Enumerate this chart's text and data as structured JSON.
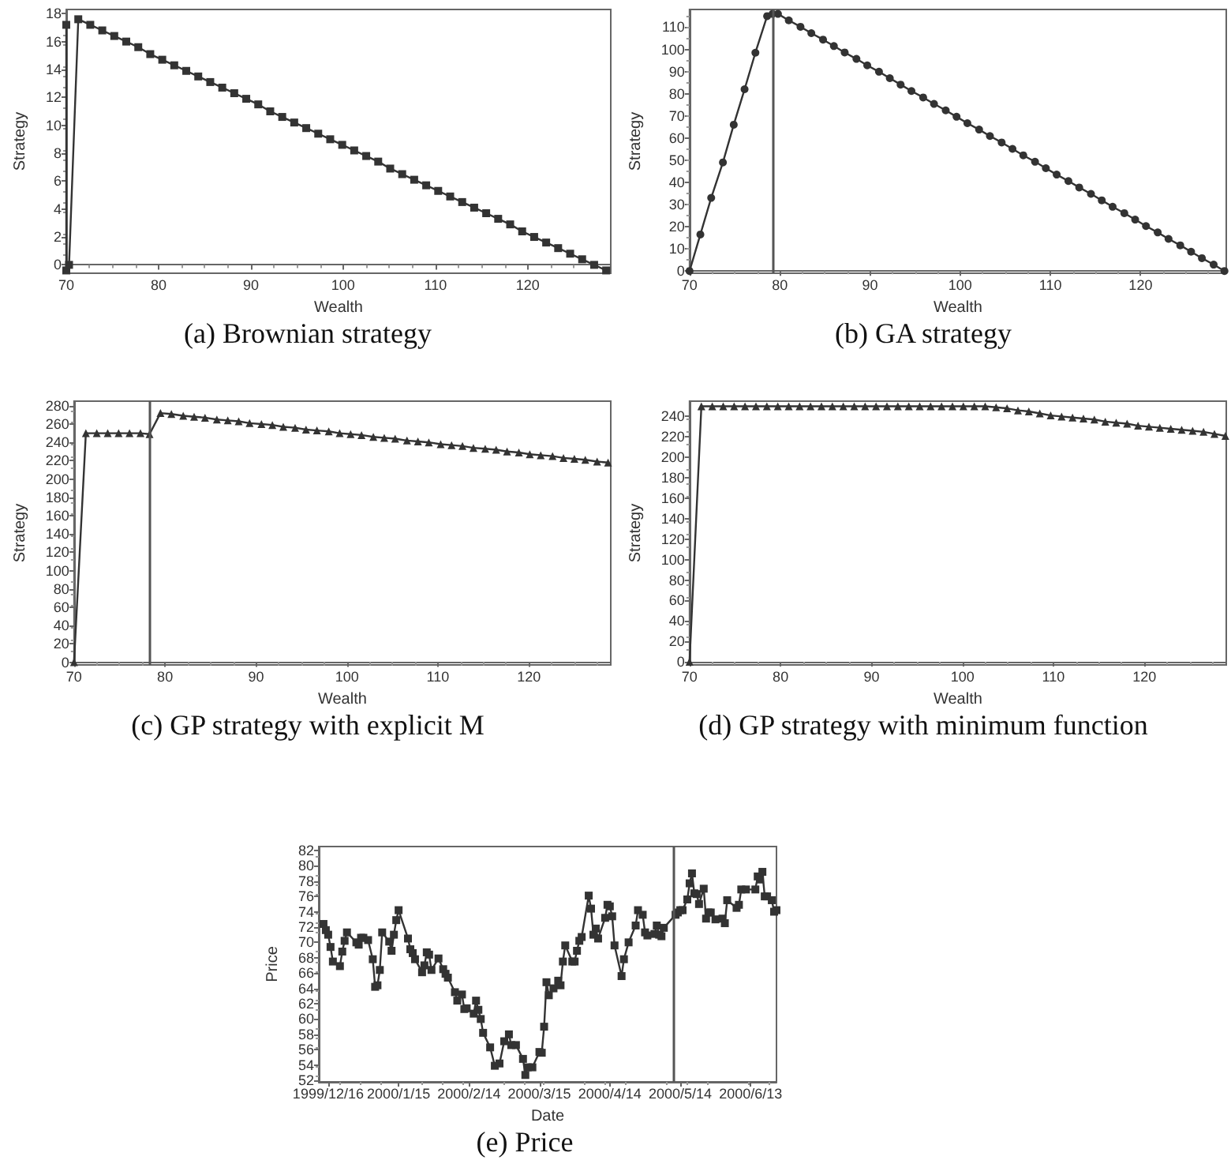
{
  "chart_data": [
    {
      "type": "line",
      "title": "(a) Brownian strategy",
      "xlabel": "Wealth",
      "ylabel": "Strategy",
      "color": "#333333",
      "marker": "square",
      "xlim": [
        70,
        129
      ],
      "ylim": [
        -0.6,
        18.3
      ],
      "xticks": [
        70,
        80,
        90,
        100,
        110,
        120
      ],
      "yticks": [
        0,
        2,
        4,
        6,
        8,
        10,
        12,
        14,
        16,
        18
      ],
      "x": [
        70,
        70,
        70.3,
        71.3,
        72.6,
        73.9,
        75.2,
        76.5,
        77.8,
        79.1,
        80.4,
        81.7,
        83.0,
        84.3,
        85.6,
        86.9,
        88.2,
        89.5,
        90.8,
        92.1,
        93.4,
        94.7,
        96.0,
        97.3,
        98.6,
        99.9,
        101.2,
        102.5,
        103.8,
        105.1,
        106.4,
        107.7,
        109.0,
        110.3,
        111.6,
        112.9,
        114.2,
        115.5,
        116.8,
        118.1,
        119.4,
        120.7,
        122.0,
        123.3,
        124.6,
        125.9,
        127.2,
        128.5
      ],
      "values": [
        17.2,
        -0.4,
        0,
        17.6,
        17.2,
        16.8,
        16.4,
        16.0,
        15.6,
        15.1,
        14.7,
        14.3,
        13.9,
        13.5,
        13.1,
        12.7,
        12.3,
        11.9,
        11.5,
        11.0,
        10.6,
        10.2,
        9.8,
        9.4,
        9.0,
        8.6,
        8.2,
        7.8,
        7.4,
        6.9,
        6.5,
        6.1,
        5.7,
        5.3,
        4.9,
        4.5,
        4.1,
        3.7,
        3.3,
        2.9,
        2.4,
        2.0,
        1.6,
        1.2,
        0.8,
        0.4,
        0.0,
        -0.4
      ]
    },
    {
      "type": "line",
      "title": "(b) GA strategy",
      "xlabel": "Wealth",
      "ylabel": "Strategy",
      "color": "#333333",
      "marker": "circle",
      "xlim": [
        70,
        129.5
      ],
      "ylim": [
        -1,
        118
      ],
      "xticks": [
        70,
        80,
        90,
        100,
        110,
        120
      ],
      "yticks": [
        0,
        10,
        20,
        30,
        40,
        50,
        60,
        70,
        80,
        90,
        100,
        110
      ],
      "ref_lines": [
        {
          "axis": "x",
          "value": 79.2,
          "color": "#555555"
        }
      ],
      "x": [
        70,
        71.2,
        72.4,
        73.7,
        74.9,
        76.1,
        77.3,
        78.6,
        79.2,
        79.8,
        81.0,
        82.3,
        83.5,
        84.8,
        86.0,
        87.2,
        88.5,
        89.7,
        91.0,
        92.2,
        93.4,
        94.6,
        95.9,
        97.1,
        98.4,
        99.6,
        100.8,
        102.1,
        103.3,
        104.6,
        105.8,
        107.0,
        108.3,
        109.5,
        110.7,
        112.0,
        113.2,
        114.5,
        115.7,
        116.9,
        118.2,
        119.4,
        120.6,
        121.9,
        123.1,
        124.4,
        125.6,
        126.8,
        128.1,
        129.3
      ],
      "values": [
        0,
        16.5,
        33,
        49,
        66,
        82,
        98.5,
        115,
        116,
        116,
        113.1,
        110.2,
        107.3,
        104.4,
        101.5,
        98.6,
        95.7,
        92.8,
        89.9,
        87,
        84.1,
        81.2,
        78.3,
        75.4,
        72.5,
        69.6,
        66.7,
        63.8,
        60.9,
        58,
        55.1,
        52.2,
        49.3,
        46.4,
        43.5,
        40.6,
        37.7,
        34.8,
        31.9,
        29,
        26.1,
        23.2,
        20.3,
        17.4,
        14.5,
        11.6,
        8.7,
        5.8,
        2.9,
        0
      ]
    },
    {
      "type": "line",
      "title": "(c) GP strategy with explicit M",
      "xlabel": "Wealth",
      "ylabel": "Strategy",
      "color": "#333333",
      "marker": "triangle",
      "xlim": [
        70,
        129
      ],
      "ylim": [
        -3,
        285
      ],
      "xticks": [
        70,
        80,
        90,
        100,
        110,
        120
      ],
      "yticks": [
        0,
        20,
        40,
        60,
        80,
        100,
        120,
        140,
        160,
        180,
        200,
        220,
        240,
        260,
        280
      ],
      "ref_lines": [
        {
          "axis": "x",
          "value": 78.3,
          "color": "#555555"
        }
      ],
      "x": [
        70,
        71.3,
        72.5,
        73.7,
        74.9,
        76.1,
        77.3,
        78.3,
        79.5,
        80.7,
        82.0,
        83.2,
        84.4,
        85.7,
        86.9,
        88.1,
        89.3,
        90.6,
        91.8,
        93.0,
        94.3,
        95.5,
        96.7,
        98.0,
        99.2,
        100.4,
        101.6,
        102.9,
        104.1,
        105.3,
        106.6,
        107.8,
        109.0,
        110.3,
        111.5,
        112.7,
        113.9,
        115.2,
        116.4,
        117.6,
        118.9,
        120.1,
        121.3,
        122.6,
        123.8,
        125.0,
        126.2,
        127.5,
        128.7
      ],
      "values": [
        0,
        250,
        250,
        250,
        250,
        250,
        250,
        249,
        272,
        271,
        269,
        268,
        267,
        265,
        264,
        263,
        261,
        260,
        259,
        257,
        256,
        254,
        253,
        252,
        250,
        249,
        248,
        246,
        245,
        244,
        242,
        241,
        240,
        238,
        237,
        236,
        234,
        233,
        232,
        230,
        229,
        227,
        226,
        225,
        223,
        222,
        221,
        219,
        218
      ]
    },
    {
      "type": "line",
      "title": "(d) GP strategy with minimum function",
      "xlabel": "Wealth",
      "ylabel": "Strategy",
      "color": "#333333",
      "marker": "triangle",
      "xlim": [
        70,
        129
      ],
      "ylim": [
        -3,
        255
      ],
      "xticks": [
        70,
        80,
        90,
        100,
        110,
        120
      ],
      "yticks": [
        0,
        20,
        40,
        60,
        80,
        100,
        120,
        140,
        160,
        180,
        200,
        220,
        240
      ],
      "x": [
        70,
        71.3,
        72.5,
        73.7,
        74.9,
        76.1,
        77.3,
        78.5,
        79.7,
        80.9,
        82.1,
        83.3,
        84.5,
        85.7,
        86.9,
        88.1,
        89.3,
        90.5,
        91.7,
        92.9,
        94.1,
        95.3,
        96.5,
        97.7,
        98.9,
        100.1,
        101.3,
        102.5,
        103.7,
        104.9,
        106.1,
        107.3,
        108.5,
        109.7,
        110.9,
        112.1,
        113.3,
        114.5,
        115.7,
        116.9,
        118.1,
        119.3,
        120.5,
        121.7,
        122.9,
        124.1,
        125.3,
        126.5,
        127.7,
        128.9
      ],
      "values": [
        0,
        250,
        250,
        250,
        250,
        250,
        250,
        250,
        250,
        250,
        250,
        250,
        250,
        250,
        250,
        250,
        250,
        250,
        250,
        250,
        250,
        250,
        250,
        250,
        250,
        250,
        250,
        250,
        249,
        248,
        246,
        245,
        243,
        241,
        240,
        239,
        238,
        237,
        235,
        234,
        233,
        231,
        230,
        229,
        228,
        227,
        226,
        225,
        223,
        221
      ]
    },
    {
      "type": "line",
      "title": "(e) Price",
      "xlabel": "Date",
      "ylabel": "Price",
      "color": "#333333",
      "marker": "square",
      "xlim": [
        "1999-12-12",
        "2000-06-24"
      ],
      "ylim": [
        51.8,
        82.5
      ],
      "xticks": [
        {
          "value": "1999-12-16",
          "label": "1999/12/16"
        },
        {
          "value": "2000-01-15",
          "label": "2000/1/15"
        },
        {
          "value": "2000-02-14",
          "label": "2000/2/14"
        },
        {
          "value": "2000-03-15",
          "label": "2000/3/15"
        },
        {
          "value": "2000-04-14",
          "label": "2000/4/14"
        },
        {
          "value": "2000-05-14",
          "label": "2000/5/14"
        },
        {
          "value": "2000-06-13",
          "label": "2000/6/13"
        }
      ],
      "yticks": [
        52,
        54,
        56,
        58,
        60,
        62,
        64,
        66,
        68,
        70,
        72,
        74,
        76,
        78,
        80,
        82
      ],
      "ref_lines": [
        {
          "axis": "x",
          "value": "2000-05-11",
          "color": "#555555"
        }
      ],
      "x": [
        "1999-12-14",
        "1999-12-15",
        "1999-12-16",
        "1999-12-17",
        "1999-12-18",
        "1999-12-21",
        "1999-12-22",
        "1999-12-23",
        "1999-12-24",
        "1999-12-28",
        "1999-12-29",
        "1999-12-30",
        "1999-12-31",
        "2000-01-02",
        "2000-01-04",
        "2000-01-05",
        "2000-01-06",
        "2000-01-07",
        "2000-01-08",
        "2000-01-11",
        "2000-01-12",
        "2000-01-13",
        "2000-01-14",
        "2000-01-15",
        "2000-01-19",
        "2000-01-20",
        "2000-01-21",
        "2000-01-22",
        "2000-01-25",
        "2000-01-26",
        "2000-01-27",
        "2000-01-28",
        "2000-01-29",
        "2000-02-01",
        "2000-02-03",
        "2000-02-04",
        "2000-02-05",
        "2000-02-08",
        "2000-02-09",
        "2000-02-11",
        "2000-02-12",
        "2000-02-13",
        "2000-02-16",
        "2000-02-17",
        "2000-02-18",
        "2000-02-19",
        "2000-02-20",
        "2000-02-23",
        "2000-02-25",
        "2000-02-27",
        "2000-02-29",
        "2000-03-02",
        "2000-03-03",
        "2000-03-05",
        "2000-03-08",
        "2000-03-09",
        "2000-03-10",
        "2000-03-12",
        "2000-03-15",
        "2000-03-16",
        "2000-03-17",
        "2000-03-18",
        "2000-03-19",
        "2000-03-21",
        "2000-03-23",
        "2000-03-24",
        "2000-03-25",
        "2000-03-26",
        "2000-03-29",
        "2000-03-30",
        "2000-03-31",
        "2000-04-01",
        "2000-04-02",
        "2000-04-05",
        "2000-04-06",
        "2000-04-07",
        "2000-04-08",
        "2000-04-09",
        "2000-04-12",
        "2000-04-13",
        "2000-04-14",
        "2000-04-15",
        "2000-04-16",
        "2000-04-19",
        "2000-04-20",
        "2000-04-22",
        "2000-04-25",
        "2000-04-26",
        "2000-04-28",
        "2000-04-29",
        "2000-04-30",
        "2000-05-03",
        "2000-05-04",
        "2000-05-05",
        "2000-05-06",
        "2000-05-07",
        "2000-05-12",
        "2000-05-13",
        "2000-05-14",
        "2000-05-15",
        "2000-05-17",
        "2000-05-18",
        "2000-05-19",
        "2000-05-20",
        "2000-05-21",
        "2000-05-22",
        "2000-05-24",
        "2000-05-25",
        "2000-05-26",
        "2000-05-27",
        "2000-05-29",
        "2000-06-01",
        "2000-06-02",
        "2000-06-03",
        "2000-06-07",
        "2000-06-08",
        "2000-06-09",
        "2000-06-11",
        "2000-06-15",
        "2000-06-16",
        "2000-06-17",
        "2000-06-18",
        "2000-06-19",
        "2000-06-20",
        "2000-06-22",
        "2000-06-23",
        "2000-06-24"
      ],
      "values": [
        72.4,
        71.6,
        71.0,
        69.4,
        67.5,
        66.9,
        68.8,
        70.2,
        71.3,
        70.0,
        69.7,
        70.6,
        70.6,
        70.3,
        67.8,
        64.2,
        64.4,
        66.4,
        71.3,
        70.1,
        68.9,
        71.0,
        72.9,
        74.2,
        70.5,
        69.1,
        68.6,
        67.8,
        66.1,
        67.0,
        68.7,
        68.4,
        66.4,
        67.9,
        66.5,
        65.9,
        65.4,
        63.5,
        62.4,
        63.2,
        61.3,
        61.4,
        60.7,
        62.4,
        61.2,
        60.0,
        58.2,
        56.3,
        53.9,
        54.2,
        57.1,
        58.0,
        56.6,
        56.6,
        54.8,
        52.7,
        53.7,
        53.7,
        55.7,
        55.6,
        59.0,
        64.8,
        63.1,
        64.0,
        65.0,
        64.4,
        67.5,
        69.6,
        67.5,
        67.5,
        68.9,
        70.2,
        70.7,
        76.1,
        74.4,
        71.0,
        71.8,
        70.5,
        73.2,
        74.9,
        74.7,
        73.4,
        69.6,
        65.6,
        67.8,
        70.0,
        72.2,
        74.2,
        73.6,
        71.3,
        70.9,
        71.1,
        72.2,
        71.0,
        70.8,
        71.9,
        73.6,
        73.9,
        74.2,
        74.2,
        75.6,
        77.7,
        79.0,
        76.4,
        76.3,
        75.0,
        77.0,
        73.1,
        73.9,
        73.9,
        73.0,
        73.1,
        72.5,
        75.5,
        74.5,
        74.9,
        76.9,
        76.9,
        76.9,
        78.6,
        78.2,
        79.2,
        76.0,
        76.0,
        75.5,
        74.0,
        74.2
      ]
    }
  ]
}
